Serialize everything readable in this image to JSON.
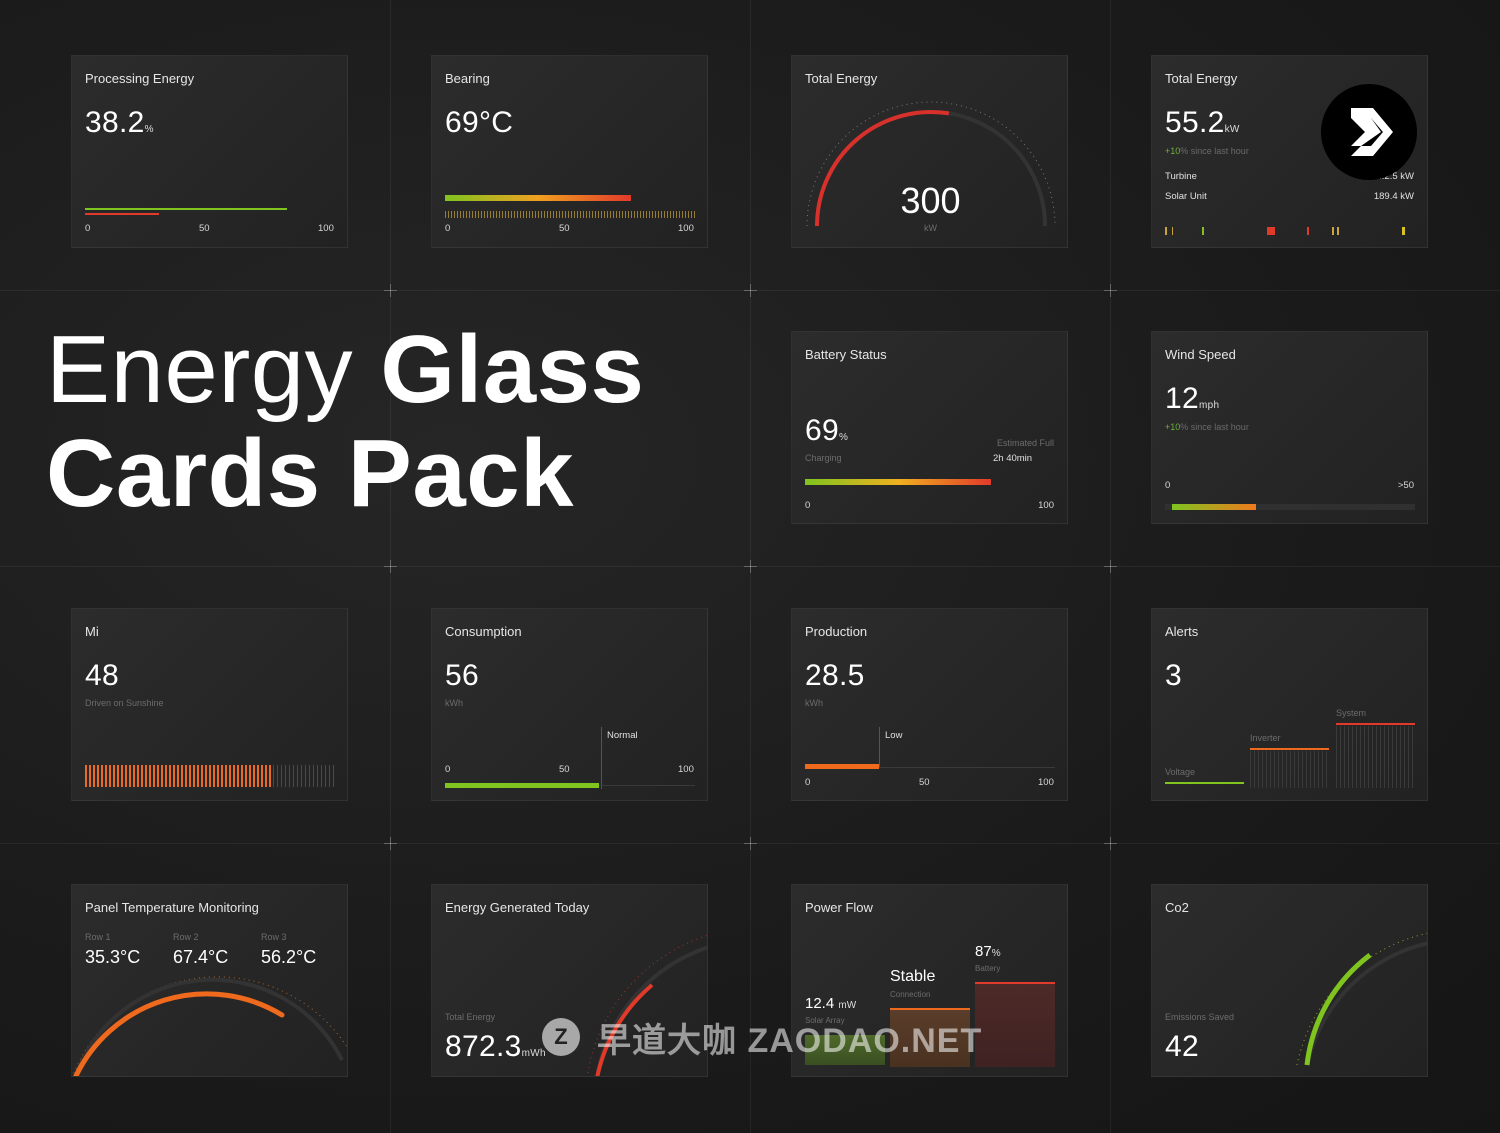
{
  "headline": {
    "line1_light": "Energy",
    "line1_bold": "Glass",
    "line2": "Cards Pack"
  },
  "watermark": {
    "text": "早道大咖 ZAODAO.NET"
  },
  "colors": {
    "green": "#7fc41f",
    "orange": "#f06a1e",
    "red": "#e23a2a",
    "bg": "#1b1b1b"
  },
  "cards": {
    "processing": {
      "title": "Processing Energy",
      "value": "38.2",
      "unit": "%",
      "ticks": [
        "0",
        "50",
        "100"
      ],
      "level": 0.38
    },
    "bearing": {
      "title": "Bearing",
      "value": "69°C",
      "ticks": [
        "0",
        "50",
        "100"
      ],
      "level": 0.69
    },
    "total_gauge": {
      "title": "Total Energy",
      "value": "300",
      "unit": "kW",
      "level": 0.55
    },
    "total_turbine": {
      "title": "Total Energy",
      "value": "55.2",
      "unit": "kW",
      "change_pct": "+10",
      "change_text": "% since last hour",
      "rows": [
        {
          "label": "Turbine",
          "value": "...2.5 kW"
        },
        {
          "label": "Solar Unit",
          "value": "189.4 kW"
        }
      ]
    },
    "battery": {
      "title": "Battery Status",
      "value": "69",
      "unit": "%",
      "status": "Charging",
      "est_label": "Estimated Full",
      "est_value": "2h 40min",
      "ticks": [
        "0",
        "100"
      ],
      "level": 0.69
    },
    "wind": {
      "title": "Wind Speed",
      "value": "12",
      "unit": "mph",
      "change_pct": "+10",
      "change_text": "% since last hour",
      "ticks": [
        "0",
        ">50"
      ],
      "level": 0.35
    },
    "mi": {
      "title": "Mi",
      "value": "48",
      "subtitle": "Driven on Sunshine",
      "level": 0.75
    },
    "consumption": {
      "title": "Consumption",
      "value": "56",
      "unit": "kWh",
      "marker": "Normal",
      "ticks": [
        "0",
        "50",
        "100"
      ],
      "level": 0.56
    },
    "production": {
      "title": "Production",
      "value": "28.5",
      "unit": "kWh",
      "marker": "Low",
      "ticks": [
        "0",
        "50",
        "100"
      ],
      "level": 0.28
    },
    "alerts": {
      "title": "Alerts",
      "value": "3",
      "categories": [
        "Voltage",
        "Inverter",
        "System"
      ]
    },
    "panel_temp": {
      "title": "Panel Temperature Monitoring",
      "rows": [
        {
          "label": "Row 1",
          "value": "35.3°C"
        },
        {
          "label": "Row 2",
          "value": "67.4°C"
        },
        {
          "label": "Row 3",
          "value": "56.2°C"
        }
      ]
    },
    "generated": {
      "title": "Energy Generated Today",
      "label": "Total Energy",
      "value": "872.3",
      "unit": "mWh"
    },
    "power_flow": {
      "title": "Power Flow",
      "solar_value": "12.4",
      "solar_unit": "mW",
      "solar_label": "Solar Array",
      "conn_value": "Stable",
      "conn_label": "Connection",
      "battery_value": "87",
      "battery_unit": "%",
      "battery_label": "Battery"
    },
    "co2": {
      "title": "Co2",
      "label": "Emissions Saved",
      "value": "42"
    }
  }
}
